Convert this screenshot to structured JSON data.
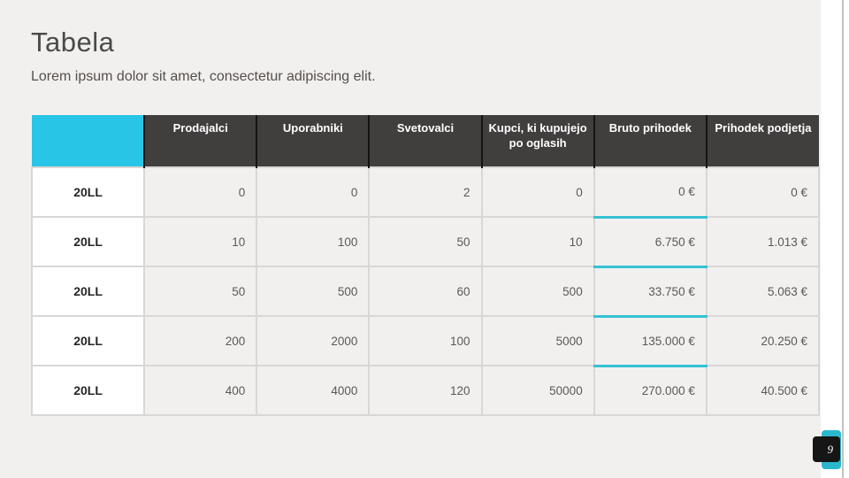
{
  "slide": {
    "title": "Tabela",
    "subtitle": "Lorem ipsum dolor sit amet, consectetur adipiscing elit.",
    "page_number": "9"
  },
  "colors": {
    "accent_cyan": "#29c5e6",
    "header_dark": "#413e3e",
    "slide_background": "#f1f0ee",
    "cell_background": "#f1f0ef",
    "accent_row_divider": "#36c1d3",
    "badge_black": "#161616"
  },
  "chart_data": {
    "type": "table",
    "columns": [
      "",
      "Prodajalci",
      "Uporabniki",
      "Svetovalci",
      "Kupci, ki kupujejo po oglasih",
      "Bruto prihodek",
      "Prihodek podjetja"
    ],
    "accent_column": "Bruto prihodek",
    "rows": [
      {
        "label": "20LL",
        "values": [
          "0",
          "0",
          "2",
          "0",
          "0 €",
          "0 €"
        ]
      },
      {
        "label": "20LL",
        "values": [
          "10",
          "100",
          "50",
          "10",
          "6.750 €",
          "1.013 €"
        ]
      },
      {
        "label": "20LL",
        "values": [
          "50",
          "500",
          "60",
          "500",
          "33.750 €",
          "5.063 €"
        ]
      },
      {
        "label": "20LL",
        "values": [
          "200",
          "2000",
          "100",
          "5000",
          "135.000 €",
          "20.250 €"
        ]
      },
      {
        "label": "20LL",
        "values": [
          "400",
          "4000",
          "120",
          "50000",
          "270.000 €",
          "40.500 €"
        ]
      }
    ]
  }
}
